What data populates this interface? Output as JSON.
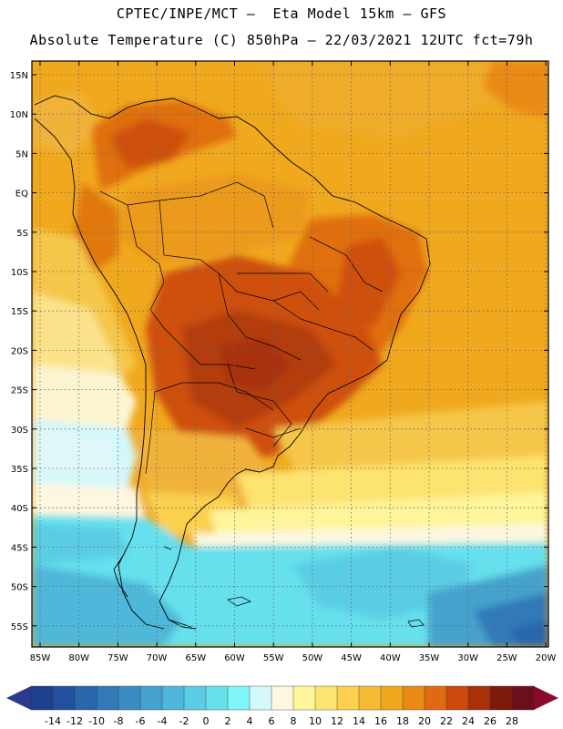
{
  "header": {
    "line1": "CPTEC/INPE/MCT –  Eta Model 15km – GFS",
    "line2": "Absolute Temperature (C) 850hPa – 22/03/2021 12UTC fct=79h"
  },
  "map": {
    "lat_labels": [
      "15N",
      "10N",
      "5N",
      "EQ",
      "5S",
      "10S",
      "15S",
      "20S",
      "25S",
      "30S",
      "35S",
      "40S",
      "45S",
      "50S",
      "55S"
    ],
    "lon_labels": [
      "85W",
      "80W",
      "75W",
      "70W",
      "65W",
      "60W",
      "55W",
      "50W",
      "45W",
      "40W",
      "35W",
      "30W",
      "25W",
      "20W"
    ],
    "grid_lines": "dotted"
  },
  "colorbar": {
    "labels": [
      "-14",
      "-12",
      "-10",
      "-8",
      "-6",
      "-4",
      "-2",
      "0",
      "2",
      "4",
      "6",
      "8",
      "10",
      "12",
      "14",
      "16",
      "18",
      "20",
      "22",
      "24",
      "26",
      "28"
    ],
    "colors": [
      "#1f3f8f",
      "#22519f",
      "#2a66ad",
      "#3179b8",
      "#3a8cc2",
      "#45a2cd",
      "#4fb7d9",
      "#5acde4",
      "#66e0ec",
      "#7ff5f8",
      "#d4f7fb",
      "#fdf7e0",
      "#fef49a",
      "#fde36f",
      "#fbd04e",
      "#f5bb32",
      "#efa81e",
      "#e98a14",
      "#e06a10",
      "#cc4a0b",
      "#a8300a",
      "#7e1a0a",
      "#6b0f1a"
    ],
    "low_end_color": "#2a3a8c",
    "high_end_color": "#8b0a2a"
  }
}
